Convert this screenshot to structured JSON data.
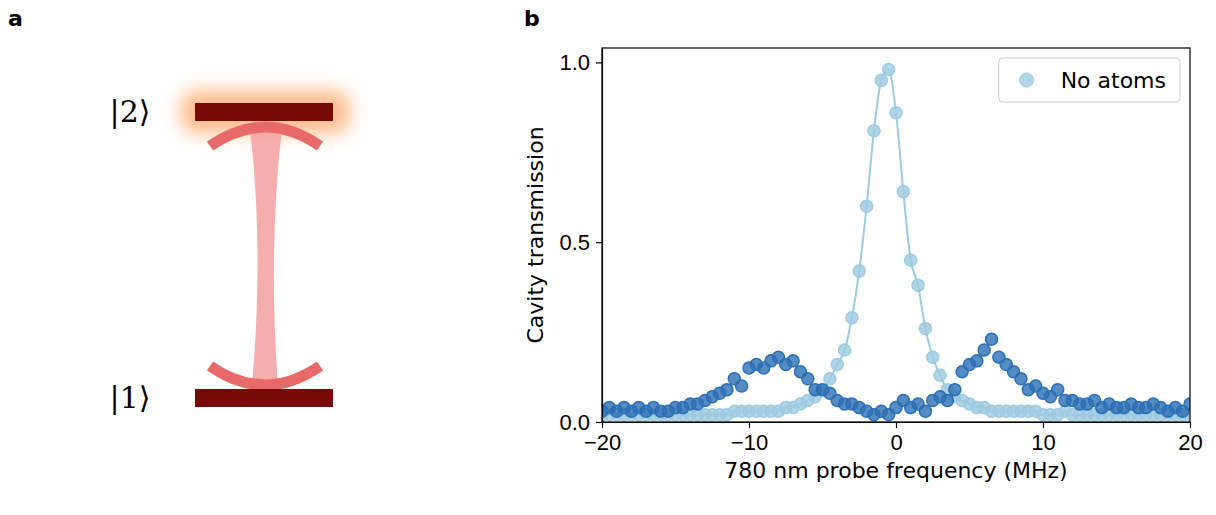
{
  "diagram": {
    "panel": "a",
    "levels": [
      {
        "label": "|2⟩"
      },
      {
        "label": "|1⟩"
      }
    ]
  },
  "chart_data": {
    "panel": "b",
    "type": "scatter",
    "xlabel": "780 nm probe frequency (MHz)",
    "ylabel": "Cavity transmission",
    "x": [
      -20,
      -19.5,
      -19,
      -18.5,
      -18,
      -17.5,
      -17,
      -16.5,
      -16,
      -15.5,
      -15,
      -14.5,
      -14,
      -13.5,
      -13,
      -12.5,
      -12,
      -11.5,
      -11,
      -10.5,
      -10,
      -9.5,
      -9,
      -8.5,
      -8,
      -7.5,
      -7,
      -6.5,
      -6,
      -5.5,
      -5,
      -4.5,
      -4,
      -3.5,
      -3,
      -2.5,
      -2,
      -1.5,
      -1,
      -0.5,
      0,
      0.5,
      1,
      1.5,
      2,
      2.5,
      3,
      3.5,
      4,
      4.5,
      5,
      5.5,
      6,
      6.5,
      7,
      7.5,
      8,
      8.5,
      9,
      9.5,
      10,
      10.5,
      11,
      11.5,
      12,
      12.5,
      13,
      13.5,
      14,
      14.5,
      15,
      15.5,
      16,
      16.5,
      17,
      17.5,
      18,
      18.5,
      19,
      19.5,
      20
    ],
    "series": [
      {
        "name": "No atoms",
        "color": "#9ecae1",
        "marker": "circle",
        "line_style": "solid",
        "values": [
          0.02,
          0.02,
          0.02,
          0.02,
          0.02,
          0.02,
          0.02,
          0.02,
          0.02,
          0.02,
          0.02,
          0.02,
          0.02,
          0.02,
          0.02,
          0.02,
          0.02,
          0.02,
          0.03,
          0.03,
          0.03,
          0.03,
          0.03,
          0.03,
          0.03,
          0.04,
          0.04,
          0.05,
          0.06,
          0.07,
          0.09,
          0.12,
          0.16,
          0.2,
          0.29,
          0.42,
          0.6,
          0.81,
          0.95,
          0.98,
          0.86,
          0.64,
          0.45,
          0.38,
          0.26,
          0.18,
          0.13,
          0.09,
          0.07,
          0.06,
          0.05,
          0.04,
          0.04,
          0.03,
          0.03,
          0.03,
          0.03,
          0.03,
          0.03,
          0.03,
          0.02,
          0.02,
          0.02,
          0.03,
          0.02,
          0.02,
          0.02,
          0.02,
          0.02,
          0.02,
          0.02,
          0.02,
          0.02,
          0.02,
          0.02,
          0.02,
          0.02,
          0.02,
          0.02,
          0.02,
          0.02
        ]
      },
      {
        "color": "#2c6fb5",
        "marker": "circle",
        "line_style": "none",
        "values": [
          0.03,
          0.04,
          0.03,
          0.04,
          0.03,
          0.04,
          0.03,
          0.04,
          0.03,
          0.03,
          0.04,
          0.04,
          0.05,
          0.05,
          0.06,
          0.07,
          0.08,
          0.09,
          0.12,
          0.1,
          0.15,
          0.16,
          0.15,
          0.17,
          0.18,
          0.16,
          0.17,
          0.14,
          0.12,
          0.09,
          0.09,
          0.08,
          0.06,
          0.05,
          0.05,
          0.04,
          0.03,
          0.02,
          0.03,
          0.02,
          0.04,
          0.06,
          0.04,
          0.05,
          0.03,
          0.06,
          0.07,
          0.06,
          0.09,
          0.14,
          0.16,
          0.17,
          0.2,
          0.23,
          0.18,
          0.16,
          0.14,
          0.12,
          0.09,
          0.1,
          0.08,
          0.07,
          0.09,
          0.06,
          0.06,
          0.05,
          0.05,
          0.06,
          0.04,
          0.05,
          0.04,
          0.04,
          0.05,
          0.04,
          0.04,
          0.05,
          0.04,
          0.03,
          0.04,
          0.03,
          0.05
        ]
      }
    ],
    "xlim": [
      -20,
      20
    ],
    "xticks": [
      {
        "value": -20,
        "label": "−20"
      },
      {
        "value": -10,
        "label": "−10"
      },
      {
        "value": 0,
        "label": "0"
      },
      {
        "value": 10,
        "label": "10"
      },
      {
        "value": 20,
        "label": "20"
      }
    ],
    "ylim": [
      0,
      1.04
    ],
    "yticks": [
      {
        "value": 0,
        "label": "0.0"
      },
      {
        "value": 0.5,
        "label": "0.5"
      },
      {
        "value": 1,
        "label": "1.0"
      }
    ],
    "grid": false,
    "legend": "upper right"
  }
}
